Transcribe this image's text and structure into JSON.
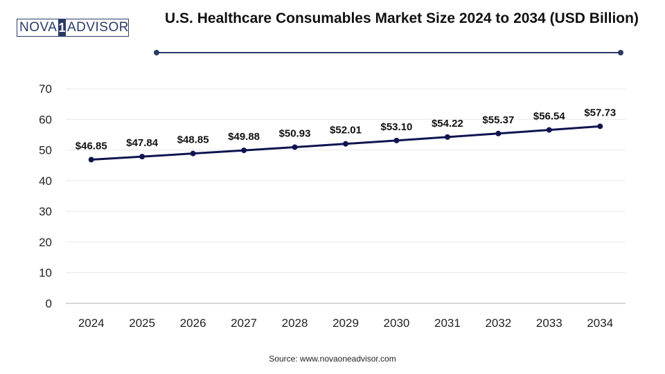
{
  "logo": {
    "left": "NOVA",
    "mid": "1",
    "right": "ADVISOR"
  },
  "source": "Source: www.novaoneadvisor.com",
  "colors": {
    "line": "#0f1450",
    "accent": "#2b3a67",
    "grid": "#e8e8e8"
  },
  "chart_data": {
    "type": "line",
    "title": "U.S. Healthcare Consumables Market Size 2024 to 2034 (USD Billion)",
    "xlabel": "",
    "ylabel": "",
    "categories": [
      "2024",
      "2025",
      "2026",
      "2027",
      "2028",
      "2029",
      "2030",
      "2031",
      "2032",
      "2033",
      "2034"
    ],
    "values": [
      46.85,
      47.84,
      48.85,
      49.88,
      50.93,
      52.01,
      53.1,
      54.22,
      55.37,
      56.54,
      57.73
    ],
    "labels": [
      "$46.85",
      "$47.84",
      "$48.85",
      "$49.88",
      "$50.93",
      "$52.01",
      "$53.10",
      "$54.22",
      "$55.37",
      "$56.54",
      "$57.73"
    ],
    "ylim": [
      0,
      70
    ],
    "yticks": [
      0,
      10,
      20,
      30,
      40,
      50,
      60,
      70
    ],
    "grid": true,
    "legend": "none"
  }
}
